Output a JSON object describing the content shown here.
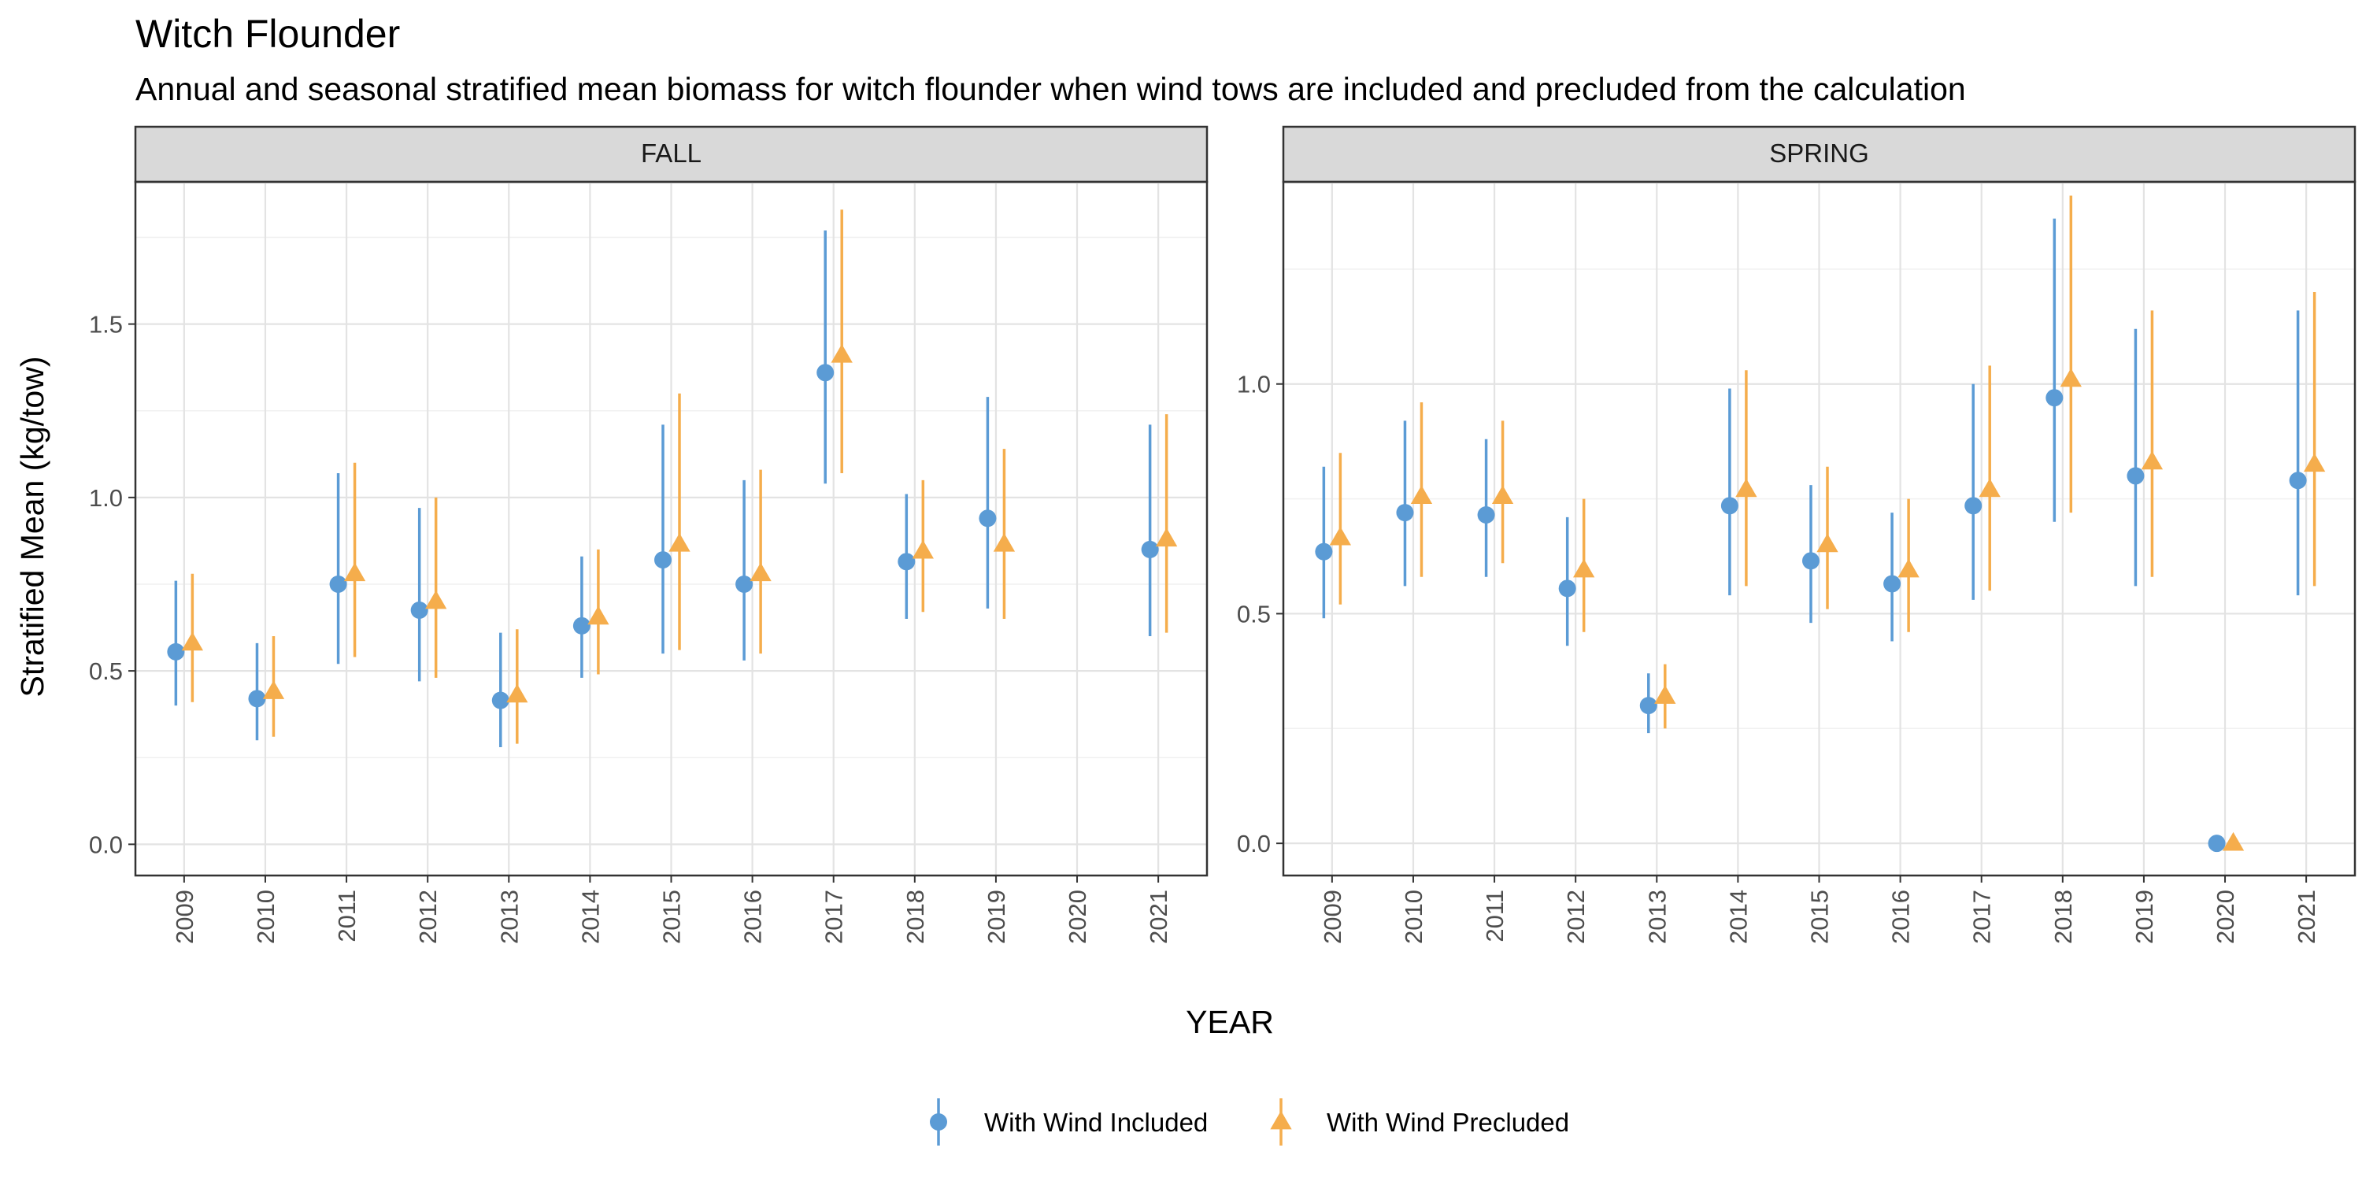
{
  "chart_data": {
    "type": "scatter",
    "title": "Witch Flounder",
    "subtitle": "Annual and seasonal stratified mean biomass for witch flounder when wind tows are included and precluded from the calculation",
    "xlabel": "YEAR",
    "ylabel": "Stratified Mean (kg/tow)",
    "grid": true,
    "legend_position": "bottom",
    "categories": [
      "2009",
      "2010",
      "2011",
      "2012",
      "2013",
      "2014",
      "2015",
      "2016",
      "2017",
      "2018",
      "2019",
      "2020",
      "2021"
    ],
    "series_styles": [
      {
        "name": "With Wind Included",
        "color": "#5b9bd5",
        "marker": "circle"
      },
      {
        "name": "With Wind Precluded",
        "color": "#f5ad4c",
        "marker": "triangle"
      }
    ],
    "panels": [
      {
        "name": "FALL",
        "ylim": [
          -0.09,
          1.91
        ],
        "yticks": [
          "0.0",
          "0.5",
          "1.0",
          "1.5"
        ],
        "series": [
          {
            "name": "With Wind Included",
            "values": [
              0.555,
              0.42,
              0.75,
              0.675,
              0.415,
              0.63,
              0.82,
              0.75,
              1.36,
              0.815,
              0.94,
              null,
              0.85
            ],
            "lower": [
              0.4,
              0.3,
              0.52,
              0.47,
              0.28,
              0.48,
              0.55,
              0.53,
              1.04,
              0.65,
              0.68,
              null,
              0.6
            ],
            "upper": [
              0.76,
              0.58,
              1.07,
              0.97,
              0.61,
              0.83,
              1.21,
              1.05,
              1.77,
              1.01,
              1.29,
              null,
              1.21
            ]
          },
          {
            "name": "With Wind Precluded",
            "values": [
              0.58,
              0.44,
              0.78,
              0.7,
              0.43,
              0.655,
              0.865,
              0.78,
              1.41,
              0.845,
              0.865,
              null,
              0.88
            ],
            "lower": [
              0.41,
              0.31,
              0.54,
              0.48,
              0.29,
              0.49,
              0.56,
              0.55,
              1.07,
              0.67,
              0.65,
              null,
              0.61
            ],
            "upper": [
              0.78,
              0.6,
              1.1,
              1.0,
              0.62,
              0.85,
              1.3,
              1.08,
              1.83,
              1.05,
              1.14,
              null,
              1.24
            ]
          }
        ]
      },
      {
        "name": "SPRING",
        "ylim": [
          -0.07,
          1.44
        ],
        "yticks": [
          "0.0",
          "0.5",
          "1.0"
        ],
        "series": [
          {
            "name": "With Wind Included",
            "values": [
              0.635,
              0.72,
              0.715,
              0.555,
              0.3,
              0.735,
              0.615,
              0.565,
              0.735,
              0.97,
              0.8,
              0.0,
              0.79
            ],
            "lower": [
              0.49,
              0.56,
              0.58,
              0.43,
              0.24,
              0.54,
              0.48,
              0.44,
              0.53,
              0.7,
              0.56,
              0.0,
              0.54
            ],
            "upper": [
              0.82,
              0.92,
              0.88,
              0.71,
              0.37,
              0.99,
              0.78,
              0.72,
              1.0,
              1.36,
              1.12,
              0.0,
              1.16
            ]
          },
          {
            "name": "With Wind Precluded",
            "values": [
              0.665,
              0.755,
              0.755,
              0.595,
              0.32,
              0.77,
              0.65,
              0.595,
              0.77,
              1.01,
              0.83,
              0.0,
              0.825
            ],
            "lower": [
              0.52,
              0.58,
              0.61,
              0.46,
              0.25,
              0.56,
              0.51,
              0.46,
              0.55,
              0.72,
              0.58,
              0.0,
              0.56
            ],
            "upper": [
              0.85,
              0.96,
              0.92,
              0.75,
              0.39,
              1.03,
              0.82,
              0.75,
              1.04,
              1.41,
              1.16,
              0.0,
              1.2
            ]
          }
        ]
      }
    ]
  }
}
